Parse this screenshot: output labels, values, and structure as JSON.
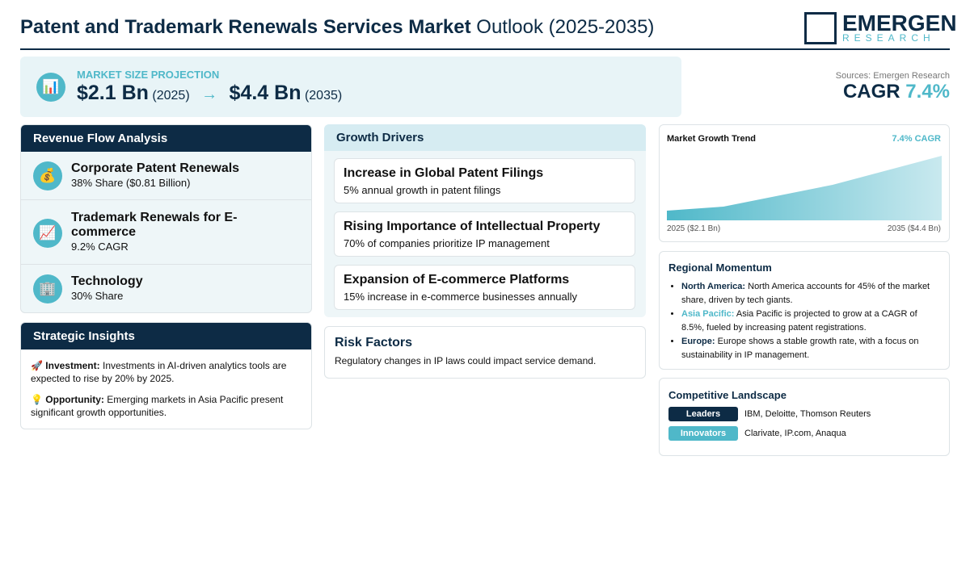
{
  "header": {
    "title_main": "Patent and Trademark Renewals Services Market",
    "title_sub": "Outlook (2025-2035)",
    "logo_name": "EMERGEN",
    "logo_tagline": "RESEARCH"
  },
  "projection": {
    "label": "MARKET SIZE PROJECTION",
    "start_value": "$2.1 Bn",
    "start_year": "(2025)",
    "end_value": "$4.4 Bn",
    "end_year": "(2035)"
  },
  "cagr": {
    "source": "Sources: Emergen Research",
    "label": "CAGR",
    "value": "7.4%"
  },
  "revenue_flow": {
    "title": "Revenue Flow Analysis",
    "items": [
      {
        "name": "Corporate Patent Renewals",
        "detail": "38% Share ($0.81 Billion)"
      },
      {
        "name": "Trademark Renewals for E-commerce",
        "detail": "9.2% CAGR"
      },
      {
        "name": "Technology",
        "detail": "30% Share"
      }
    ]
  },
  "strategic_insights": {
    "title": "Strategic Insights",
    "items": [
      {
        "label": "Investment:",
        "text": "Investments in AI-driven analytics tools are expected to rise by 20% by 2025."
      },
      {
        "label": "Opportunity:",
        "text": "Emerging markets in Asia Pacific present significant growth opportunities."
      }
    ]
  },
  "growth_drivers": {
    "title": "Growth Drivers",
    "items": [
      {
        "title": "Increase in Global Patent Filings",
        "detail": "5% annual growth in patent filings"
      },
      {
        "title": "Rising Importance of Intellectual Property",
        "detail": "70% of companies prioritize IP management"
      },
      {
        "title": "Expansion of E-commerce Platforms",
        "detail": "15% increase in e-commerce businesses annually"
      }
    ]
  },
  "risk_factors": {
    "title": "Risk Factors",
    "text": "Regulatory changes in IP laws could impact service demand."
  },
  "growth_trend": {
    "title": "Market Growth Trend",
    "badge": "7.4% CAGR",
    "start_label": "2025 ($2.1 Bn)",
    "end_label": "2035 ($4.4 Bn)"
  },
  "regional_momentum": {
    "title": "Regional Momentum",
    "items": [
      {
        "region": "North America:",
        "text": "North America accounts for 45% of the market share, driven by tech giants."
      },
      {
        "region": "Asia Pacific:",
        "text": "Asia Pacific is projected to grow at a CAGR of 8.5%, fueled by increasing patent registrations."
      },
      {
        "region": "Europe:",
        "text": "Europe shows a stable growth rate, with a focus on sustainability in IP management."
      }
    ]
  },
  "competitive_landscape": {
    "title": "Competitive Landscape",
    "groups": [
      {
        "label": "Leaders",
        "companies": "IBM, Deloitte, Thomson Reuters"
      },
      {
        "label": "Innovators",
        "companies": "Clarivate, IP.com, Anaqua"
      }
    ]
  }
}
